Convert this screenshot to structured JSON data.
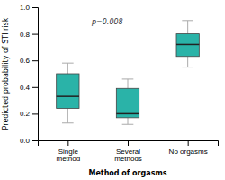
{
  "chart_data": {
    "type": "box",
    "categories": [
      "Single\nmethod",
      "Several\nmethods",
      "No orgasms"
    ],
    "boxes": [
      {
        "whisker_low": 0.13,
        "q1": 0.24,
        "median": 0.33,
        "q3": 0.5,
        "whisker_high": 0.58
      },
      {
        "whisker_low": 0.12,
        "q1": 0.17,
        "median": 0.2,
        "q3": 0.39,
        "whisker_high": 0.46
      },
      {
        "whisker_low": 0.55,
        "q1": 0.63,
        "median": 0.72,
        "q3": 0.8,
        "whisker_high": 0.9
      }
    ],
    "color": "#2ab3a8",
    "xlabel": "Method of orgasms",
    "ylabel": "Predicted probability of STI risk",
    "ylim": [
      0.0,
      1.0
    ],
    "yticks": [
      {
        "value": 0,
        "label": "0.0"
      },
      0.2,
      0.4,
      0.6,
      0.8,
      {
        "value": 1,
        "label": "1.0"
      }
    ],
    "annotation": "p=0.008",
    "grid": false
  }
}
